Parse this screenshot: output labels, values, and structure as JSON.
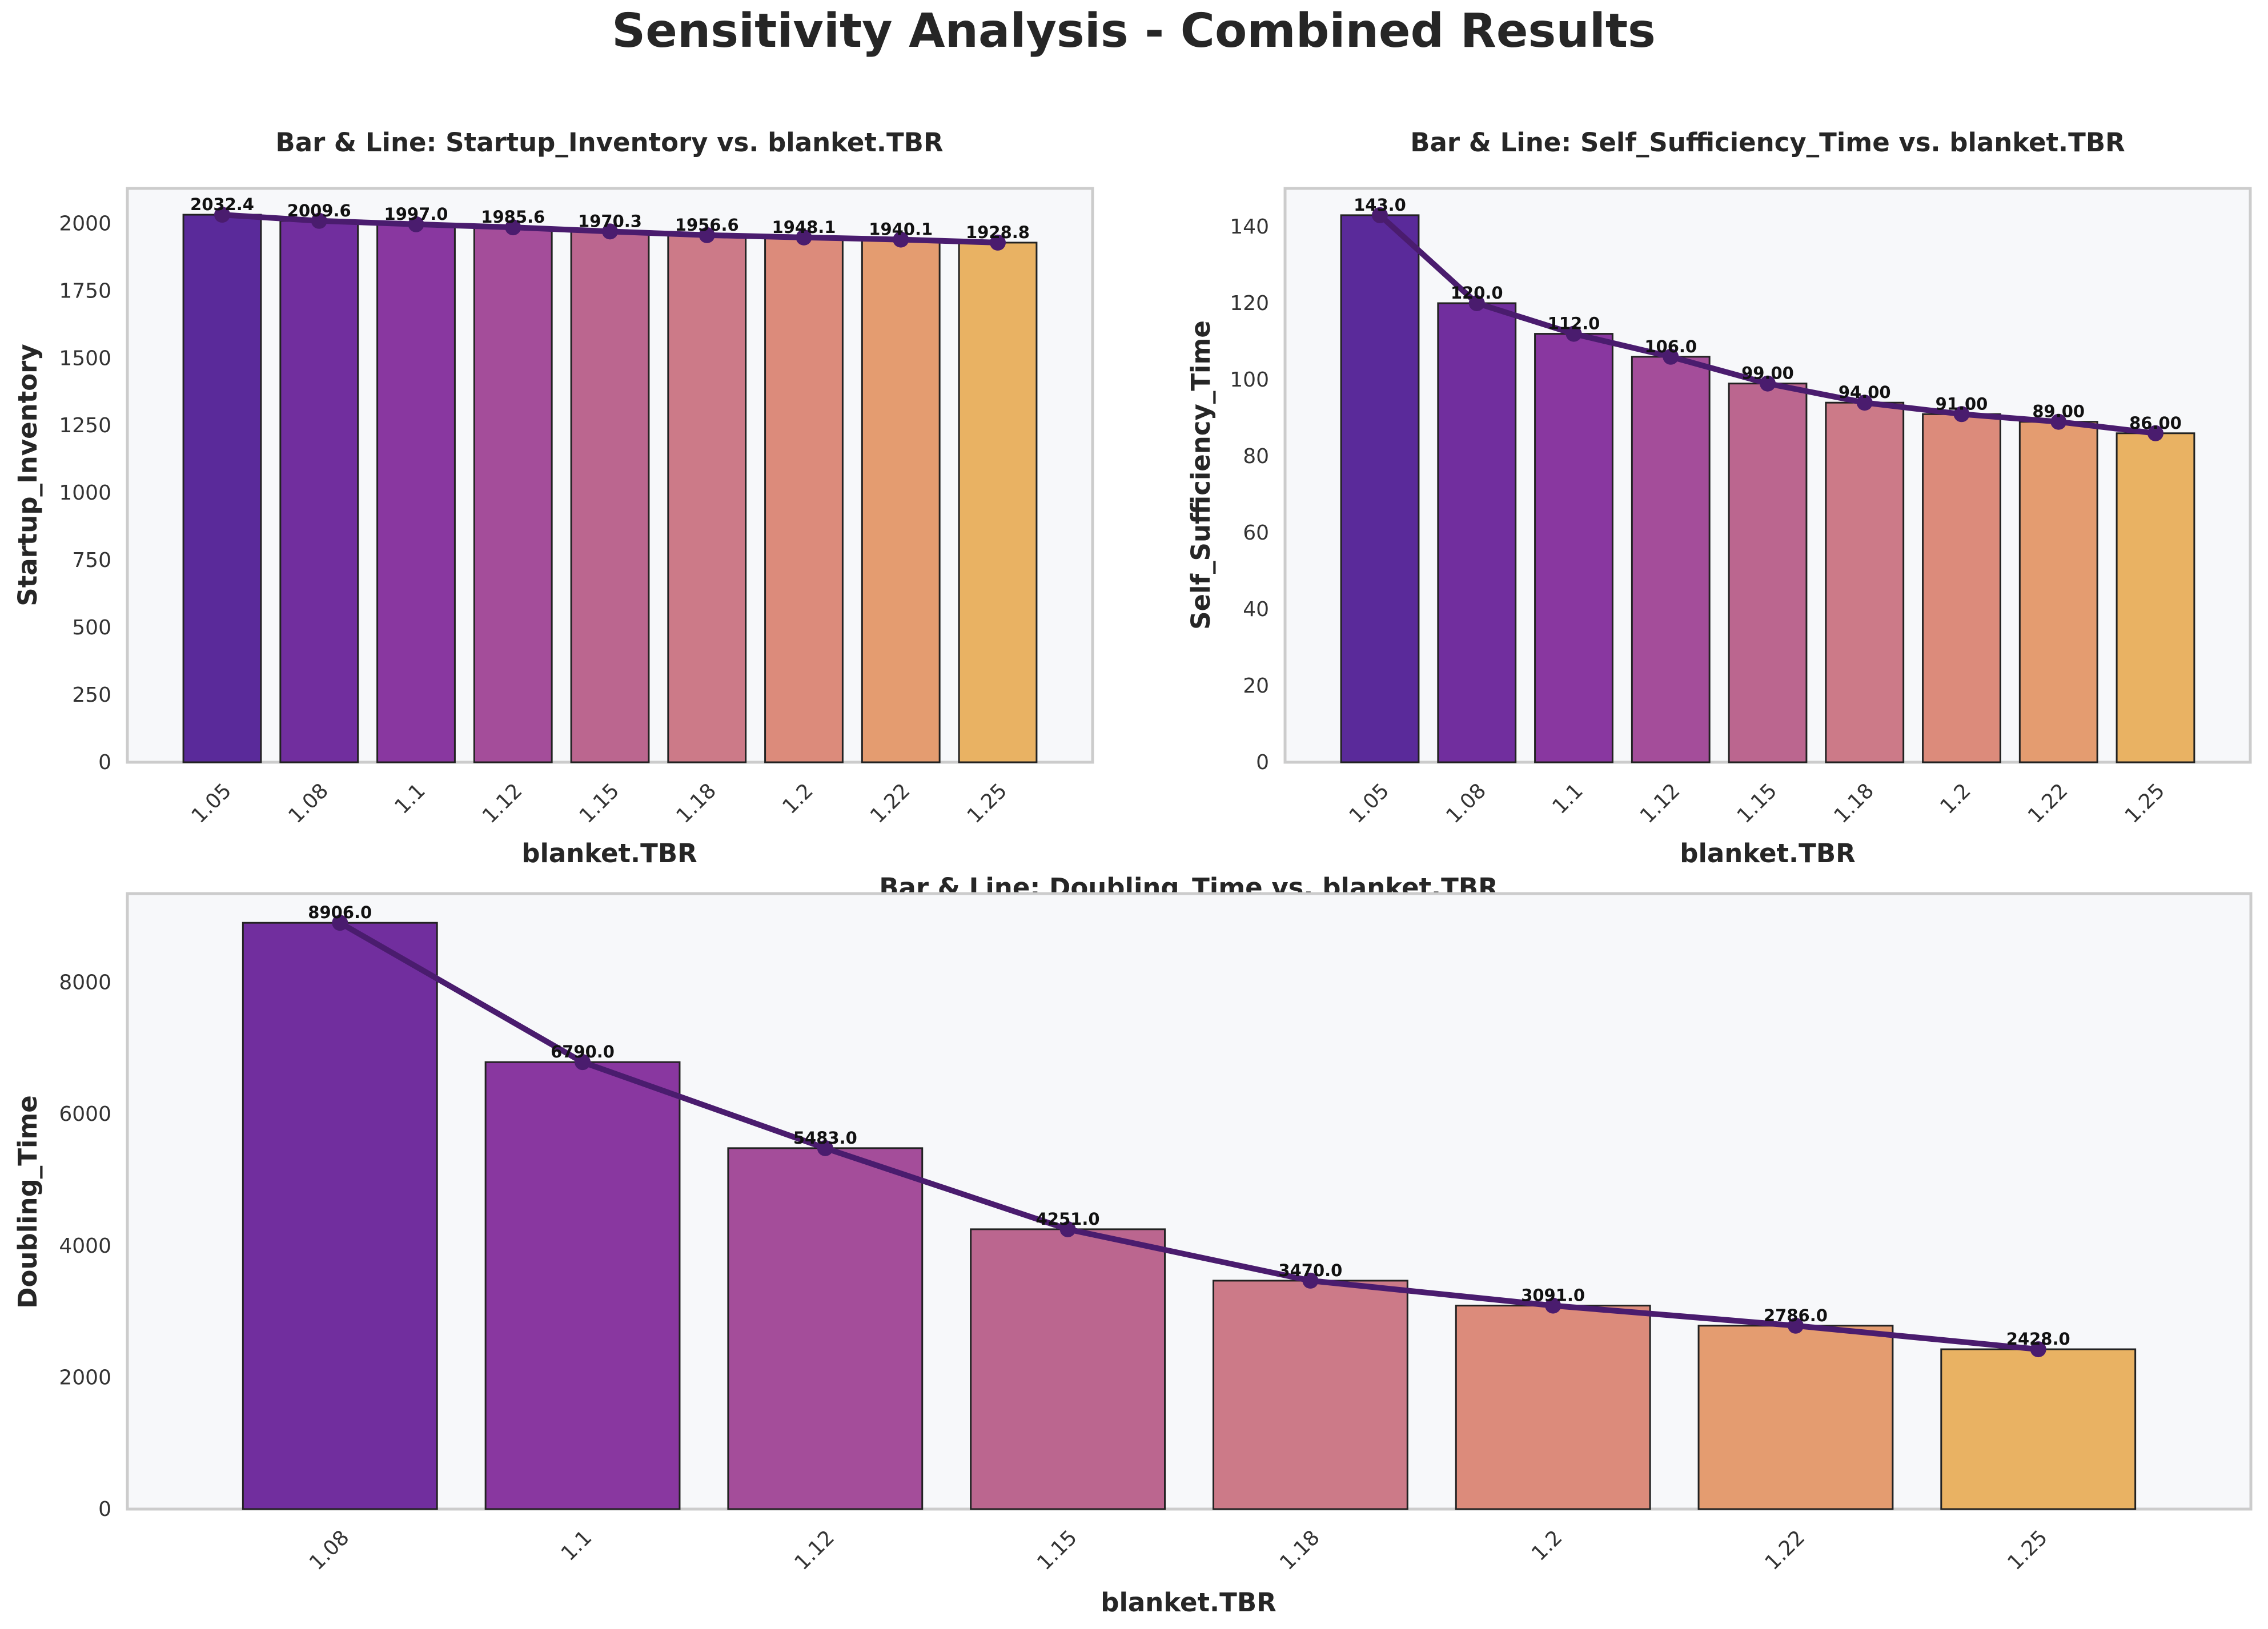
{
  "figure": {
    "title": "Sensitivity Analysis - Combined Results",
    "colors": {
      "line": "#4a1c6e",
      "bar_edge": "#222222",
      "background": "#f7f8fa",
      "palette": [
        "#5a2a9a",
        "#712e9e",
        "#8937a0",
        "#a44d9a",
        "#bb668f",
        "#cc7a88",
        "#dc8b7b",
        "#e49c70",
        "#e9b263"
      ]
    }
  },
  "chart_data": [
    {
      "type": "bar",
      "overlay": "line",
      "title": "Bar & Line: Startup_Inventory vs. blanket.TBR",
      "xlabel": "blanket.TBR",
      "ylabel": "Startup_Inventory",
      "categories": [
        "1.05",
        "1.08",
        "1.1",
        "1.12",
        "1.15",
        "1.18",
        "1.2",
        "1.22",
        "1.25"
      ],
      "values": [
        2032.4,
        2009.6,
        1997.0,
        1985.6,
        1970.3,
        1956.6,
        1948.1,
        1940.1,
        1928.8
      ],
      "value_labels": [
        "2032.4",
        "2009.6",
        "1997.0",
        "1985.6",
        "1970.3",
        "1956.6",
        "1948.1",
        "1940.1",
        "1928.8"
      ],
      "ylim": [
        0,
        2130
      ],
      "yticks": [
        0,
        250,
        500,
        750,
        1000,
        1250,
        1500,
        1750,
        2000
      ],
      "grid": false,
      "legend": "none"
    },
    {
      "type": "bar",
      "overlay": "line",
      "title": "Bar & Line: Self_Sufficiency_Time vs. blanket.TBR",
      "xlabel": "blanket.TBR",
      "ylabel": "Self_Sufficiency_Time",
      "categories": [
        "1.05",
        "1.08",
        "1.1",
        "1.12",
        "1.15",
        "1.18",
        "1.2",
        "1.22",
        "1.25"
      ],
      "values": [
        143.0,
        120.0,
        112.0,
        106.0,
        99.0,
        94.0,
        91.0,
        89.0,
        86.0
      ],
      "value_labels": [
        "143.0",
        "120.0",
        "112.0",
        "106.0",
        "99.00",
        "94.00",
        "91.00",
        "89.00",
        "86.00"
      ],
      "ylim": [
        0,
        150
      ],
      "yticks": [
        0,
        20,
        40,
        60,
        80,
        100,
        120,
        140
      ],
      "grid": false,
      "legend": "none"
    },
    {
      "type": "bar",
      "overlay": "line",
      "title": "Bar & Line: Doubling_Time vs. blanket.TBR",
      "xlabel": "blanket.TBR",
      "ylabel": "Doubling_Time",
      "categories": [
        "1.08",
        "1.1",
        "1.12",
        "1.15",
        "1.18",
        "1.2",
        "1.22",
        "1.25"
      ],
      "values": [
        8906.0,
        6790.0,
        5483.0,
        4251.0,
        3470.0,
        3091.0,
        2786.0,
        2428.0
      ],
      "value_labels": [
        "8906.0",
        "6790.0",
        "5483.0",
        "4251.0",
        "3470.0",
        "3091.0",
        "2786.0",
        "2428.0"
      ],
      "ylim": [
        0,
        9350
      ],
      "yticks": [
        0,
        2000,
        4000,
        6000,
        8000
      ],
      "grid": false,
      "legend": "none"
    }
  ]
}
